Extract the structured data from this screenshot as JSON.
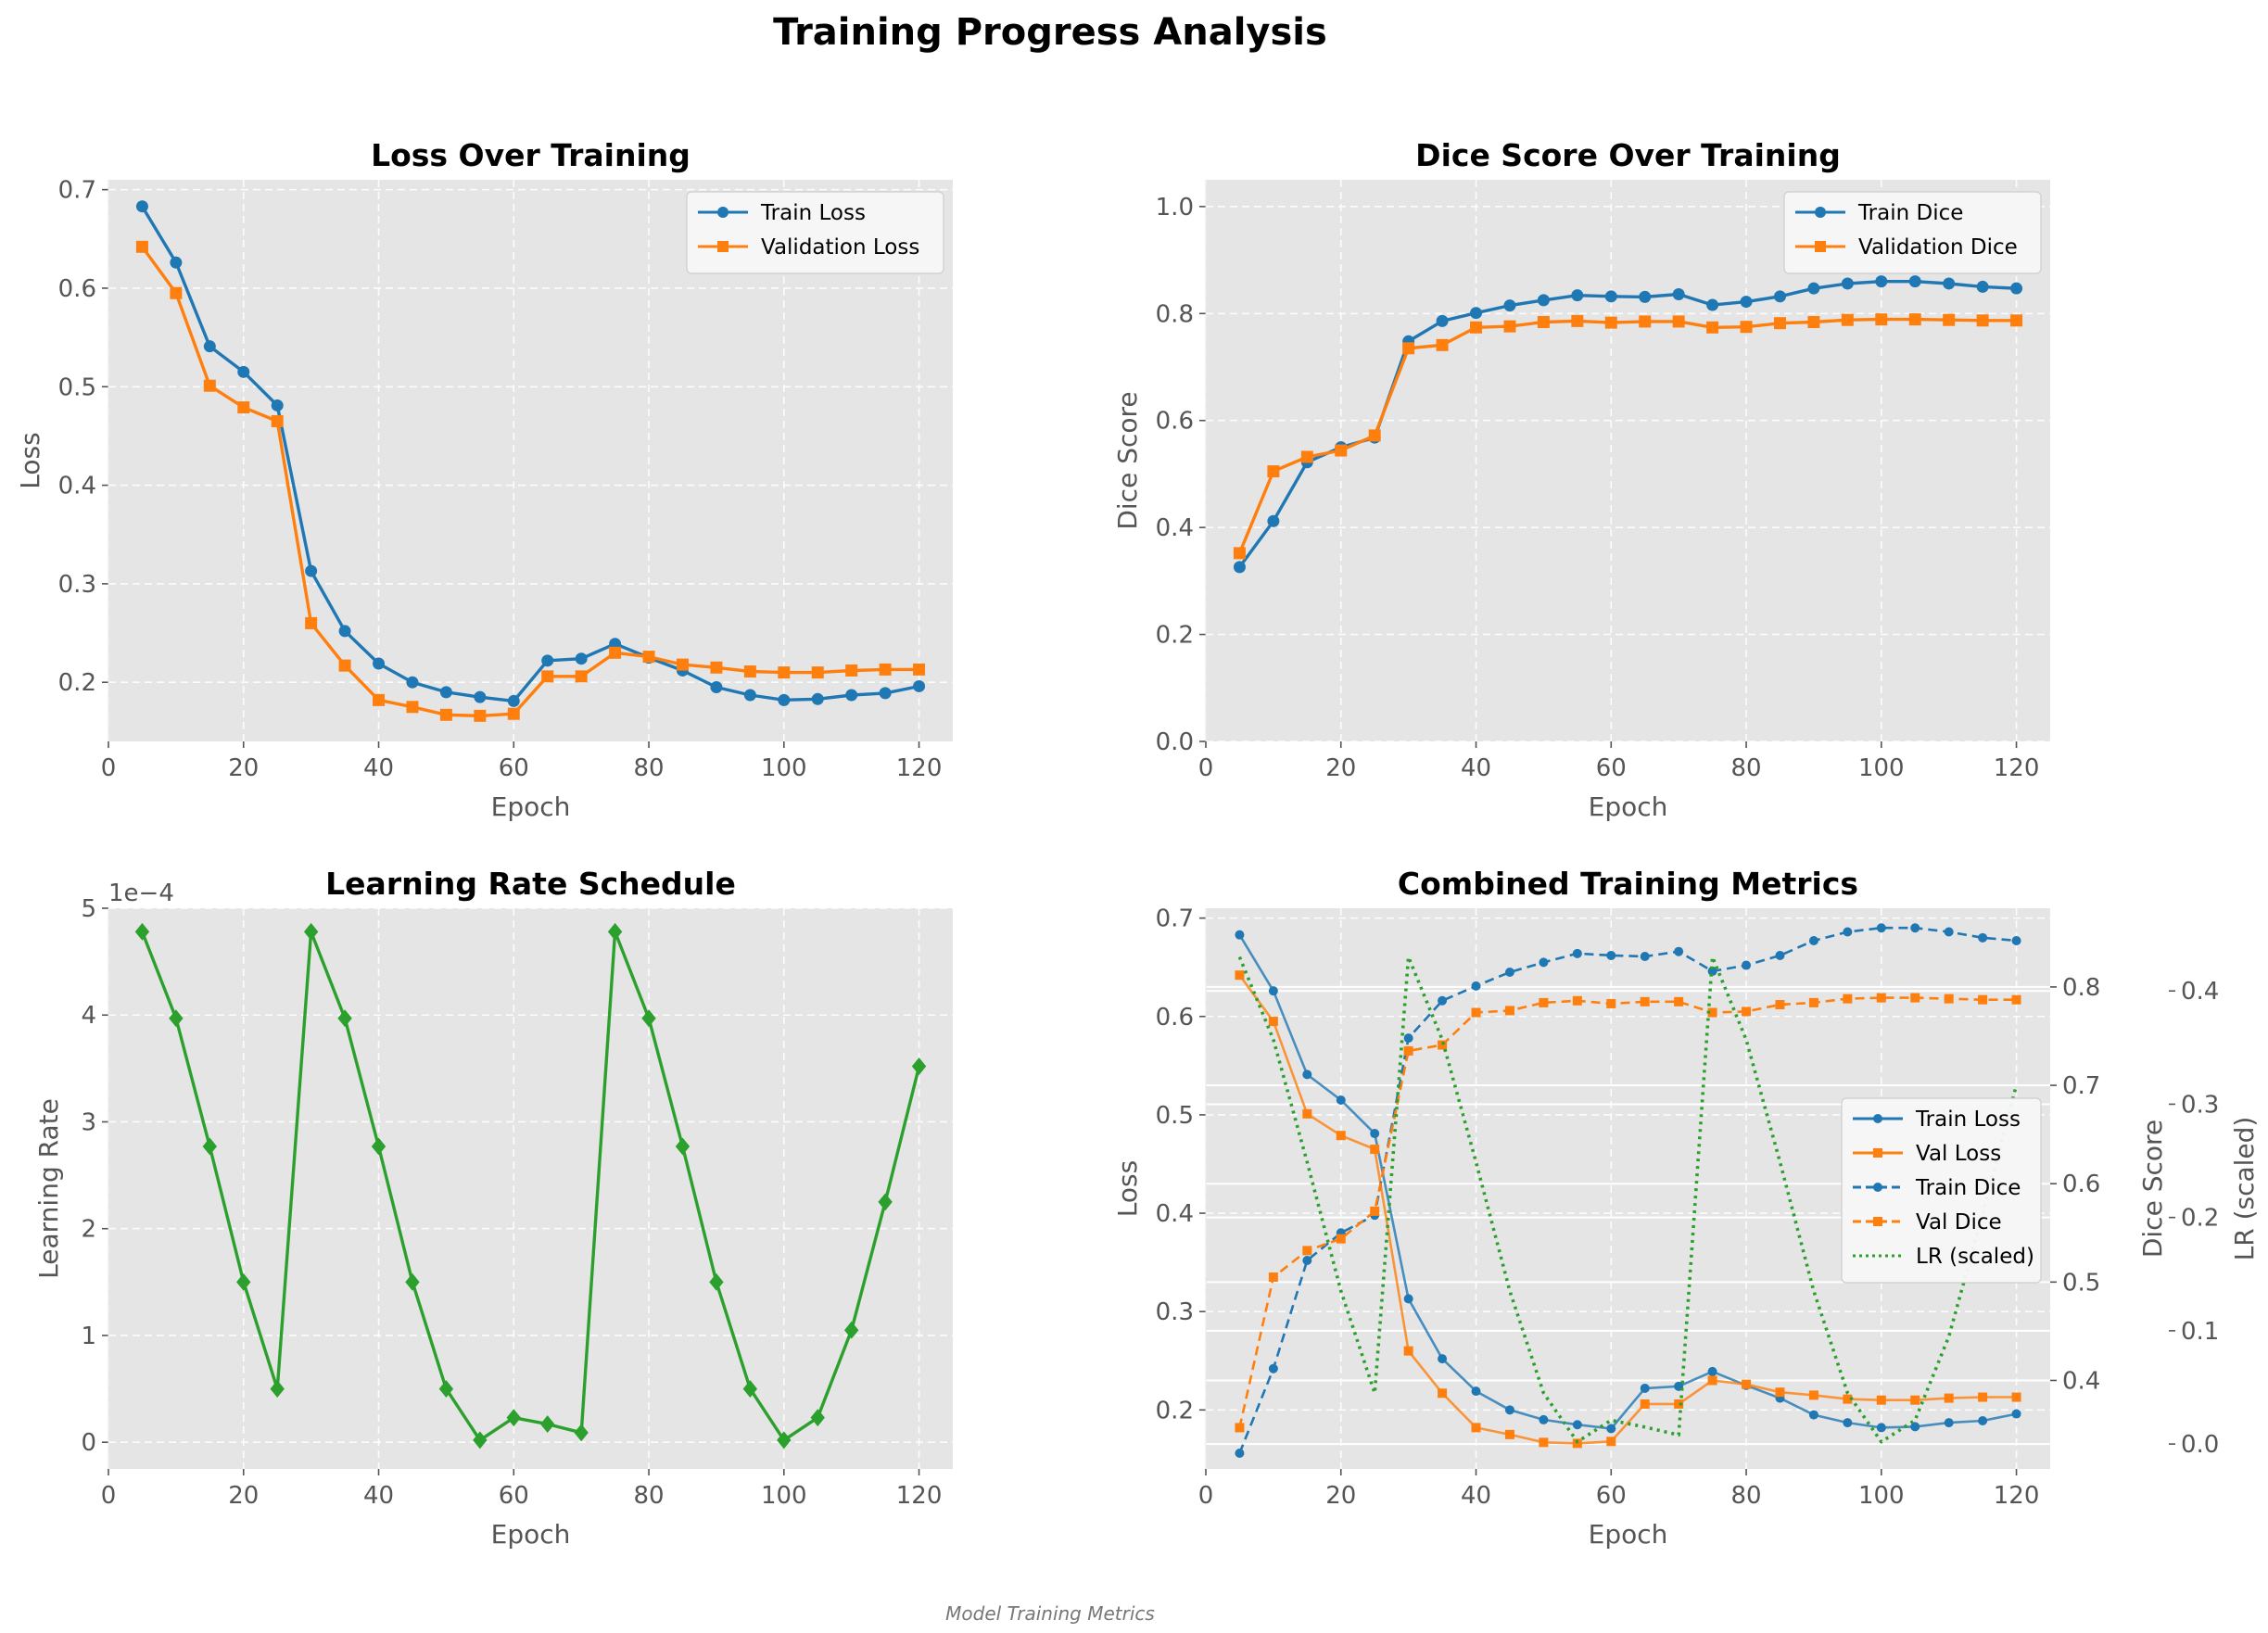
{
  "figure": {
    "title": "Training Progress Analysis",
    "footer": "Model Training Metrics"
  },
  "chart_data": [
    {
      "id": "loss",
      "type": "line",
      "title": "Loss Over Training",
      "xlabel": "Epoch",
      "ylabel": "Loss",
      "xlim": [
        0,
        125
      ],
      "ylim": [
        0.14,
        0.71
      ],
      "xticks": [
        0,
        20,
        40,
        60,
        80,
        100,
        120
      ],
      "yticks": [
        0.2,
        0.3,
        0.4,
        0.5,
        0.6,
        0.7
      ],
      "grid": true,
      "legend": "upper right",
      "x": [
        5,
        10,
        15,
        20,
        25,
        30,
        35,
        40,
        45,
        50,
        55,
        60,
        65,
        70,
        75,
        80,
        85,
        90,
        95,
        100,
        105,
        110,
        115,
        120
      ],
      "series": [
        {
          "name": "Train Loss",
          "color": "#1f77b4",
          "marker": "circle",
          "values": [
            0.683,
            0.626,
            0.541,
            0.515,
            0.481,
            0.313,
            0.252,
            0.219,
            0.2,
            0.19,
            0.185,
            0.181,
            0.222,
            0.224,
            0.239,
            0.225,
            0.212,
            0.195,
            0.187,
            0.182,
            0.183,
            0.187,
            0.189,
            0.196
          ]
        },
        {
          "name": "Validation Loss",
          "color": "#ff7f0e",
          "marker": "square",
          "values": [
            0.642,
            0.595,
            0.501,
            0.479,
            0.465,
            0.26,
            0.217,
            0.182,
            0.175,
            0.167,
            0.166,
            0.168,
            0.206,
            0.206,
            0.23,
            0.226,
            0.218,
            0.215,
            0.211,
            0.21,
            0.21,
            0.212,
            0.213,
            0.213
          ]
        }
      ]
    },
    {
      "id": "dice",
      "type": "line",
      "title": "Dice Score Over Training",
      "xlabel": "Epoch",
      "ylabel": "Dice Score",
      "xlim": [
        0,
        125
      ],
      "ylim": [
        0,
        1.05
      ],
      "xticks": [
        0,
        20,
        40,
        60,
        80,
        100,
        120
      ],
      "yticks": [
        0.0,
        0.2,
        0.4,
        0.6,
        0.8,
        1.0
      ],
      "grid": true,
      "legend": "upper right",
      "x": [
        5,
        10,
        15,
        20,
        25,
        30,
        35,
        40,
        45,
        50,
        55,
        60,
        65,
        70,
        75,
        80,
        85,
        90,
        95,
        100,
        105,
        110,
        115,
        120
      ],
      "series": [
        {
          "name": "Train Dice",
          "color": "#1f77b4",
          "marker": "circle",
          "values": [
            0.326,
            0.412,
            0.522,
            0.55,
            0.568,
            0.748,
            0.786,
            0.801,
            0.815,
            0.825,
            0.834,
            0.832,
            0.831,
            0.836,
            0.816,
            0.822,
            0.832,
            0.847,
            0.856,
            0.86,
            0.86,
            0.856,
            0.85,
            0.847
          ]
        },
        {
          "name": "Validation Dice",
          "color": "#ff7f0e",
          "marker": "square",
          "values": [
            0.352,
            0.505,
            0.532,
            0.544,
            0.572,
            0.735,
            0.741,
            0.774,
            0.776,
            0.784,
            0.786,
            0.783,
            0.785,
            0.785,
            0.774,
            0.775,
            0.782,
            0.784,
            0.788,
            0.789,
            0.789,
            0.788,
            0.787,
            0.787
          ]
        }
      ]
    },
    {
      "id": "lr",
      "type": "line",
      "title": "Learning Rate Schedule",
      "xlabel": "Epoch",
      "ylabel": "Learning Rate",
      "offset_text": "1e−4",
      "xlim": [
        0,
        125
      ],
      "ylim": [
        -0.25,
        5.0
      ],
      "xticks": [
        0,
        20,
        40,
        60,
        80,
        100,
        120
      ],
      "yticks": [
        0,
        1,
        2,
        3,
        4,
        5
      ],
      "grid": true,
      "x": [
        5,
        10,
        15,
        20,
        25,
        30,
        35,
        40,
        45,
        50,
        55,
        60,
        65,
        70,
        75,
        80,
        85,
        90,
        95,
        100,
        105,
        110,
        115,
        120
      ],
      "series": [
        {
          "name": "",
          "color": "#2ca02c",
          "marker": "diamond",
          "values": [
            4.78,
            3.97,
            2.77,
            1.5,
            0.5,
            4.78,
            3.97,
            2.77,
            1.5,
            0.5,
            0.02,
            0.23,
            0.17,
            0.09,
            4.78,
            3.97,
            2.77,
            1.5,
            0.5,
            0.02,
            0.23,
            1.05,
            2.25,
            3.52
          ]
        }
      ]
    },
    {
      "id": "combined",
      "type": "line",
      "title": "Combined Training Metrics",
      "xlabel": "Epoch",
      "ylabel": "Loss",
      "ylabel_right": "Dice Score",
      "ylabel_right2": "LR (scaled)",
      "xlim": [
        0,
        125
      ],
      "ylim": [
        0.14,
        0.71
      ],
      "ylim_right": [
        0.31,
        0.88
      ],
      "ylim_right2": [
        -0.022,
        0.473
      ],
      "xticks": [
        0,
        20,
        40,
        60,
        80,
        100,
        120
      ],
      "yticks": [
        0.2,
        0.3,
        0.4,
        0.5,
        0.6,
        0.7
      ],
      "yticks_right": [
        0.4,
        0.5,
        0.6,
        0.7,
        0.8
      ],
      "yticks_right2": [
        0.0,
        0.1,
        0.2,
        0.3,
        0.4
      ],
      "grid": true,
      "legend": "center right",
      "x": [
        5,
        10,
        15,
        20,
        25,
        30,
        35,
        40,
        45,
        50,
        55,
        60,
        65,
        70,
        75,
        80,
        85,
        90,
        95,
        100,
        105,
        110,
        115,
        120
      ],
      "series": [
        {
          "name": "Train Loss",
          "color": "#1f77b4",
          "marker": "circle",
          "axis": "left",
          "style": "solid",
          "values": [
            0.683,
            0.626,
            0.541,
            0.515,
            0.481,
            0.313,
            0.252,
            0.219,
            0.2,
            0.19,
            0.185,
            0.181,
            0.222,
            0.224,
            0.239,
            0.225,
            0.212,
            0.195,
            0.187,
            0.182,
            0.183,
            0.187,
            0.189,
            0.196
          ]
        },
        {
          "name": "Val Loss",
          "color": "#ff7f0e",
          "marker": "square",
          "axis": "left",
          "style": "solid",
          "values": [
            0.642,
            0.595,
            0.501,
            0.479,
            0.465,
            0.26,
            0.217,
            0.182,
            0.175,
            0.167,
            0.166,
            0.168,
            0.206,
            0.206,
            0.23,
            0.226,
            0.218,
            0.215,
            0.211,
            0.21,
            0.21,
            0.212,
            0.213,
            0.213
          ]
        },
        {
          "name": "Train Dice",
          "color": "#1f77b4",
          "marker": "circle",
          "axis": "right",
          "style": "dashed",
          "values": [
            0.326,
            0.412,
            0.522,
            0.55,
            0.568,
            0.748,
            0.786,
            0.801,
            0.815,
            0.825,
            0.834,
            0.832,
            0.831,
            0.836,
            0.816,
            0.822,
            0.832,
            0.847,
            0.856,
            0.86,
            0.86,
            0.856,
            0.85,
            0.847
          ]
        },
        {
          "name": "Val Dice",
          "color": "#ff7f0e",
          "marker": "square",
          "axis": "right",
          "style": "dashed",
          "values": [
            0.352,
            0.505,
            0.532,
            0.544,
            0.572,
            0.735,
            0.741,
            0.774,
            0.776,
            0.784,
            0.786,
            0.783,
            0.785,
            0.785,
            0.774,
            0.775,
            0.782,
            0.784,
            0.788,
            0.789,
            0.789,
            0.788,
            0.787,
            0.787
          ]
        },
        {
          "name": "LR (scaled)",
          "color": "#2ca02c",
          "marker": "none",
          "axis": "right2",
          "style": "dotted",
          "values": [
            0.43,
            0.357,
            0.249,
            0.135,
            0.045,
            0.43,
            0.357,
            0.249,
            0.135,
            0.045,
            0.002,
            0.021,
            0.015,
            0.008,
            0.43,
            0.357,
            0.249,
            0.135,
            0.045,
            0.002,
            0.021,
            0.095,
            0.203,
            0.317
          ]
        }
      ]
    }
  ]
}
